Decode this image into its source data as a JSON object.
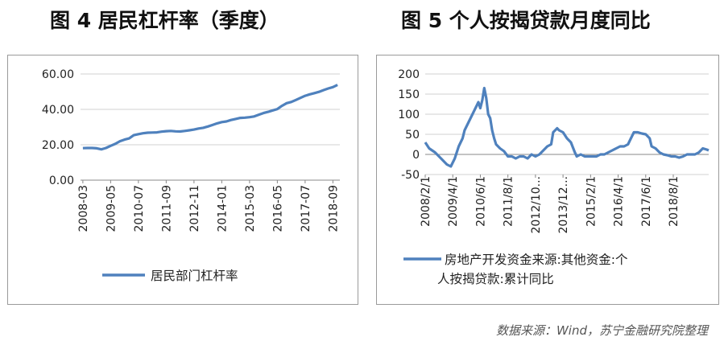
{
  "chart_data": [
    {
      "type": "line",
      "title": "图 4  居民杠杆率（季度）",
      "ylim": [
        0,
        60
      ],
      "yticks": [
        "0.00",
        "20.00",
        "40.00",
        "60.00"
      ],
      "xtick_labels": [
        "2008-03",
        "2009-05",
        "2010-07",
        "2011-09",
        "2012-11",
        "2014-01",
        "2015-03",
        "2016-05",
        "2017-07",
        "2018-09"
      ],
      "grid": "horizontal",
      "legend_position": "bottom",
      "series": [
        {
          "name": "居民部门杠杆率",
          "color": "#4f81bd",
          "values": [
            18.1,
            18.2,
            18.2,
            18.0,
            17.4,
            18.2,
            19.4,
            20.5,
            22.0,
            22.9,
            23.6,
            25.4,
            26.0,
            26.5,
            26.8,
            26.9,
            27.0,
            27.4,
            27.7,
            27.8,
            27.6,
            27.5,
            27.8,
            28.2,
            28.6,
            29.2,
            29.6,
            30.3,
            31.2,
            32.1,
            32.8,
            33.2,
            34.0,
            34.6,
            35.2,
            35.3,
            35.6,
            36.0,
            37.0,
            37.9,
            38.6,
            39.4,
            40.2,
            42.0,
            43.5,
            44.2,
            45.3,
            46.5,
            47.7,
            48.5,
            49.2,
            49.9,
            50.9,
            51.8,
            52.6,
            53.8
          ]
        }
      ]
    },
    {
      "type": "line",
      "title": "图 5  个人按揭贷款月度同比",
      "ylim": [
        -50,
        200
      ],
      "yticks": [
        "-50",
        "0",
        "50",
        "100",
        "150",
        "200"
      ],
      "xtick_labels": [
        "2008/2/1",
        "2009/4/1",
        "2010/6/1",
        "2011/8/1",
        "2012/10...",
        "2013/12...",
        "2015/2/1",
        "2016/4/1",
        "2017/6/1",
        "2018/8/1"
      ],
      "grid": "horizontal",
      "legend_position": "bottom",
      "series": [
        {
          "name": "房地产开发资金来源:其他资金:个人按揭贷款:累计同比",
          "color": "#4f81bd",
          "points": [
            [
              0,
              30
            ],
            [
              2,
              15
            ],
            [
              5,
              5
            ],
            [
              8,
              -10
            ],
            [
              11,
              -25
            ],
            [
              13,
              -30
            ],
            [
              15,
              -10
            ],
            [
              17,
              20
            ],
            [
              19,
              40
            ],
            [
              20,
              60
            ],
            [
              22,
              80
            ],
            [
              24,
              100
            ],
            [
              26,
              120
            ],
            [
              27,
              130
            ],
            [
              28,
              115
            ],
            [
              29,
              135
            ],
            [
              30,
              165
            ],
            [
              31,
              140
            ],
            [
              32,
              100
            ],
            [
              33,
              90
            ],
            [
              34,
              60
            ],
            [
              35,
              40
            ],
            [
              36,
              25
            ],
            [
              38,
              15
            ],
            [
              40,
              8
            ],
            [
              42,
              -5
            ],
            [
              44,
              -5
            ],
            [
              46,
              -10
            ],
            [
              48,
              -5
            ],
            [
              50,
              -5
            ],
            [
              52,
              -10
            ],
            [
              54,
              0
            ],
            [
              56,
              -5
            ],
            [
              58,
              0
            ],
            [
              60,
              10
            ],
            [
              62,
              20
            ],
            [
              64,
              25
            ],
            [
              65,
              55
            ],
            [
              67,
              65
            ],
            [
              68,
              60
            ],
            [
              70,
              55
            ],
            [
              72,
              40
            ],
            [
              74,
              30
            ],
            [
              76,
              5
            ],
            [
              77,
              -5
            ],
            [
              79,
              0
            ],
            [
              81,
              -5
            ],
            [
              84,
              -5
            ],
            [
              87,
              -5
            ],
            [
              89,
              0
            ],
            [
              91,
              0
            ],
            [
              93,
              5
            ],
            [
              95,
              10
            ],
            [
              97,
              15
            ],
            [
              99,
              20
            ],
            [
              101,
              20
            ],
            [
              103,
              25
            ],
            [
              104,
              35
            ],
            [
              106,
              55
            ],
            [
              108,
              55
            ],
            [
              110,
              52
            ],
            [
              112,
              50
            ],
            [
              114,
              40
            ],
            [
              115,
              20
            ],
            [
              117,
              15
            ],
            [
              119,
              5
            ],
            [
              121,
              0
            ],
            [
              123,
              -2
            ],
            [
              125,
              -5
            ],
            [
              127,
              -5
            ],
            [
              129,
              -8
            ],
            [
              131,
              -5
            ],
            [
              133,
              0
            ],
            [
              135,
              0
            ],
            [
              137,
              0
            ],
            [
              139,
              5
            ],
            [
              141,
              15
            ],
            [
              143,
              12
            ],
            [
              144,
              10
            ]
          ]
        }
      ]
    }
  ],
  "source": "数据来源：Wind，苏宁金融研究院整理"
}
